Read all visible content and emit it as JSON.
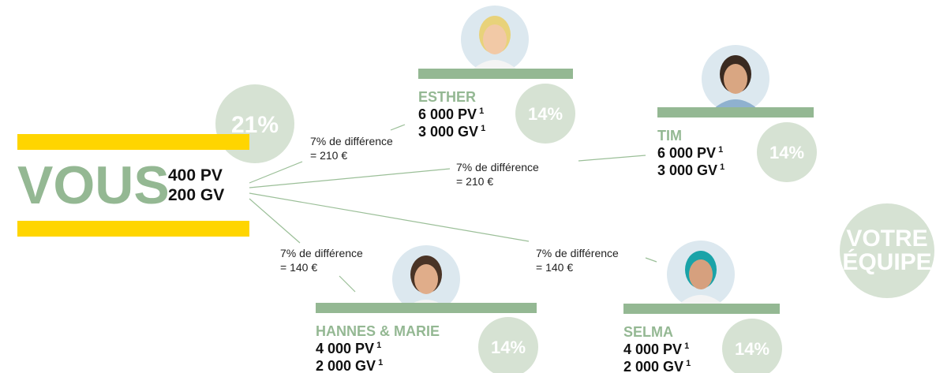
{
  "you": {
    "label": "VOUS",
    "pv": "400 PV",
    "gv": "200 GV",
    "percent": "21%"
  },
  "members": [
    {
      "name": "ESTHER",
      "pv": "6 000 PV",
      "gv": "3 000 GV",
      "note": "1",
      "percent": "14%",
      "diff": "7% de différence",
      "amount": "= 210 €"
    },
    {
      "name": "TIM",
      "pv": "6 000 PV",
      "gv": "3 000 GV",
      "note": "1",
      "percent": "14%",
      "diff": "7% de différence",
      "amount": "= 210 €"
    },
    {
      "name": "HANNES & MARIE",
      "pv": "4 000 PV",
      "gv": "2 000 GV",
      "note": "1",
      "percent": "14%",
      "diff": "7% de différence",
      "amount": "= 140 €"
    },
    {
      "name": "SELMA",
      "pv": "4 000 PV",
      "gv": "2 000 GV",
      "note": "1",
      "percent": "14%",
      "diff": "7% de différence",
      "amount": "= 140 €"
    }
  ],
  "team": {
    "line1": "VOTRE",
    "line2": "ÉQUIPE"
  }
}
